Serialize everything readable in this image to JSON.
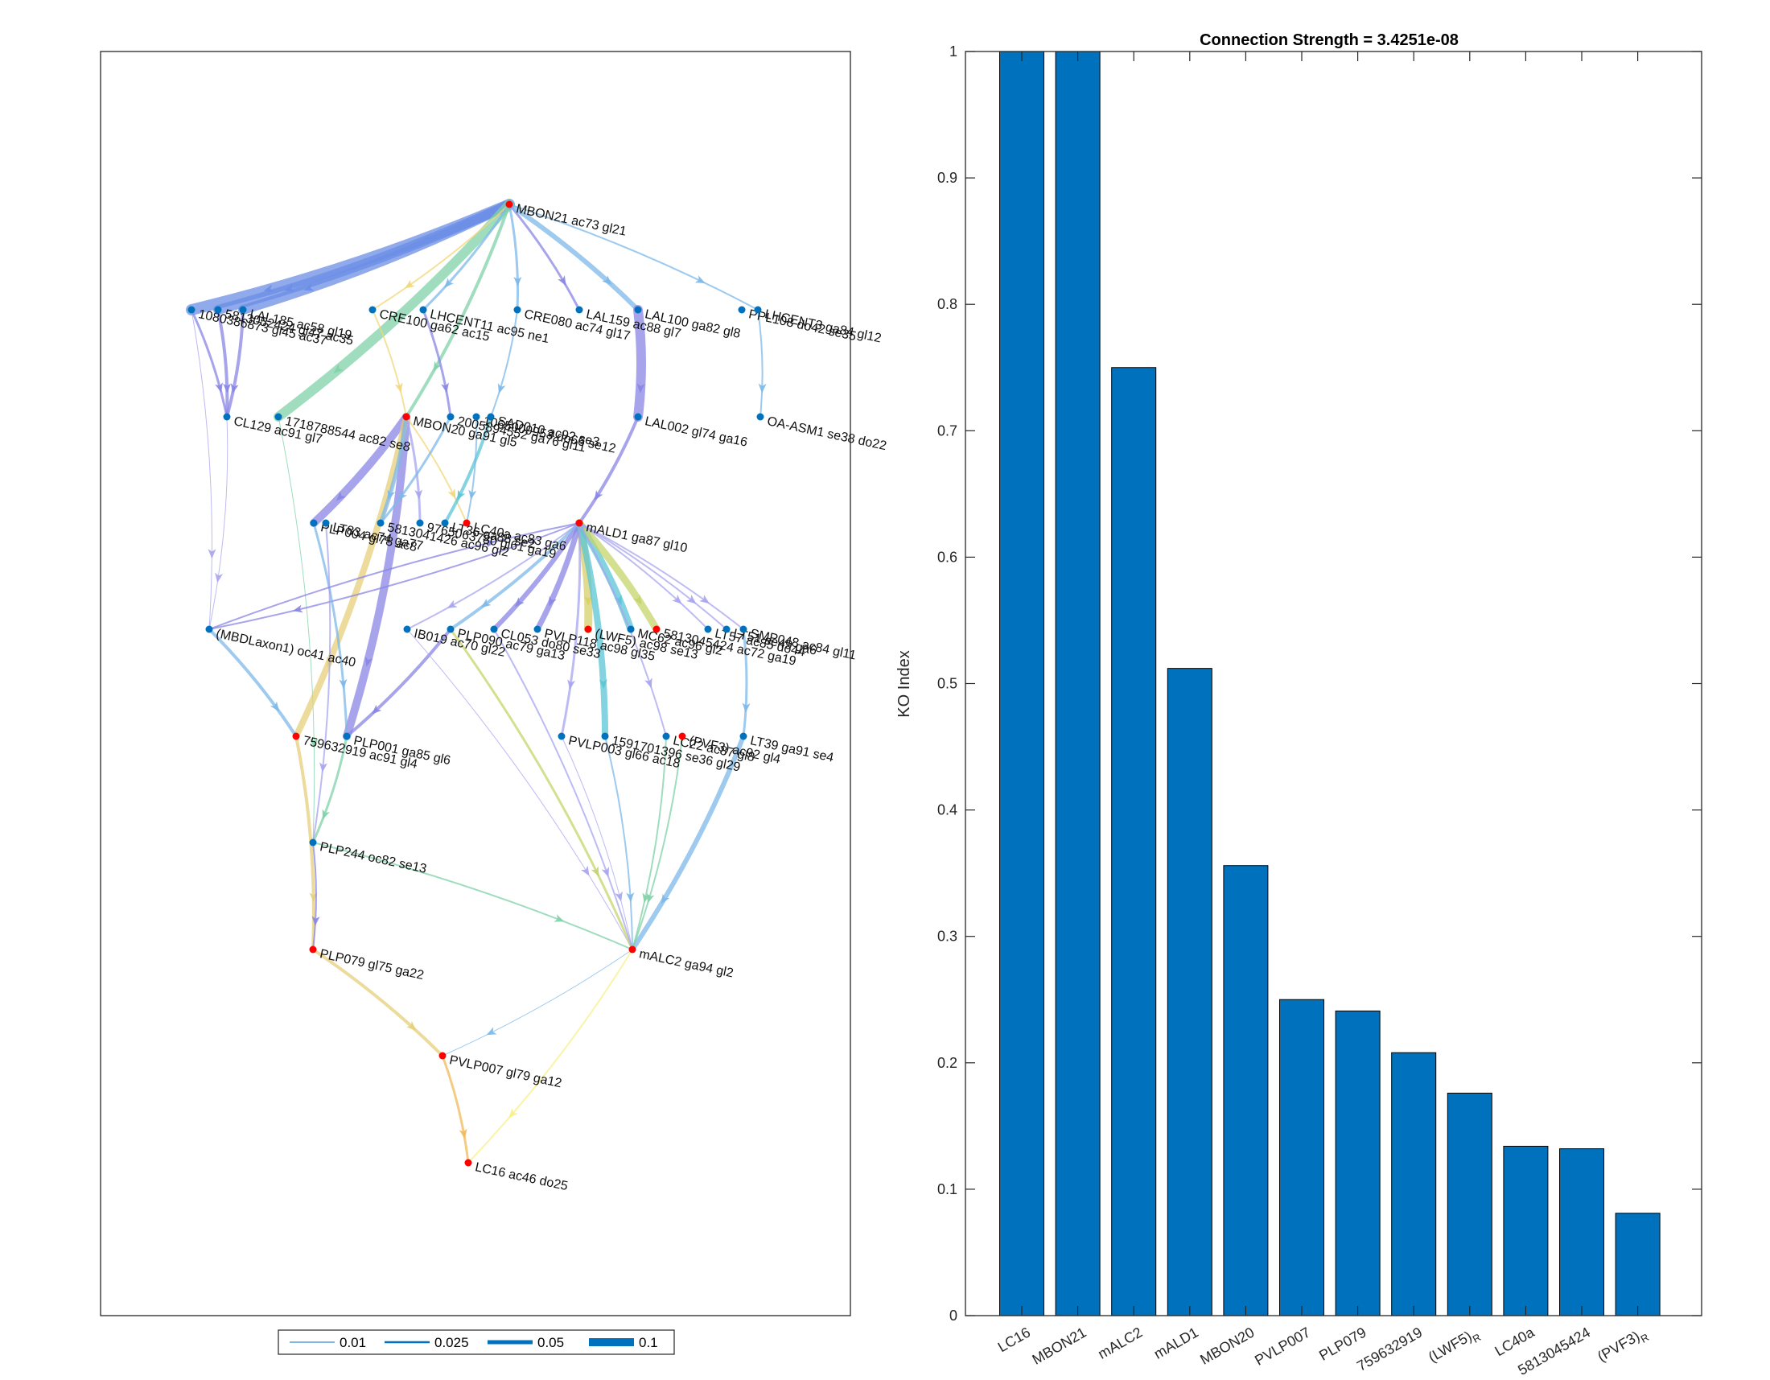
{
  "colors": {
    "bar": "#0072BD",
    "node_red": "#FF0000",
    "node_blue": "#0072BD",
    "legend_line": "#0072BD"
  },
  "graph": {
    "nodes": [
      {
        "id": "mbon21",
        "label": "MBON21 ac73 gl21",
        "color": "red"
      },
      {
        "id": "n1080",
        "label": "1080386873 gl45 ac37",
        "color": "blue"
      },
      {
        "id": "n5813b",
        "label": "5813052424 gl47 ac35",
        "color": "blue"
      },
      {
        "id": "lal185",
        "label": "LAL185 ac58 gl19",
        "color": "blue"
      },
      {
        "id": "cre100",
        "label": "CRE100 ga62 ac15",
        "color": "blue"
      },
      {
        "id": "lhcent11",
        "label": "LHCENT11 ac95 ne1",
        "color": "blue"
      },
      {
        "id": "cre080",
        "label": "CRE080 ac74 gl17",
        "color": "blue"
      },
      {
        "id": "lal159",
        "label": "LAL159 ac88 gl7",
        "color": "blue"
      },
      {
        "id": "lal100",
        "label": "LAL100 ga82 gl8",
        "color": "blue"
      },
      {
        "id": "ppl108",
        "label": "PPL108 do42 se35",
        "color": "blue"
      },
      {
        "id": "lhcent3",
        "label": "LHCENT3 ga84 gl12",
        "color": "blue"
      },
      {
        "id": "cl129",
        "label": "CL129 ac91 gl7",
        "color": "blue"
      },
      {
        "id": "n1718",
        "label": "1718788544 ac82 se8",
        "color": "blue"
      },
      {
        "id": "mbon20",
        "label": "MBON20 ga91 gl5",
        "color": "red"
      },
      {
        "id": "n2005",
        "label": "2005894552 ga76 gl11",
        "color": "blue"
      },
      {
        "id": "n1065",
        "label": "1065009953 do66 se12",
        "color": "blue"
      },
      {
        "id": "sad010",
        "label": "SAD010 ac92 se3",
        "color": "blue"
      },
      {
        "id": "lal002",
        "label": "LAL002 gl74 ga16",
        "color": "blue"
      },
      {
        "id": "oaasm1",
        "label": "OA-ASM1 se38 do22",
        "color": "blue"
      },
      {
        "id": "plp004",
        "label": "PLP004 gl78 ac8",
        "color": "blue"
      },
      {
        "id": "lt83",
        "label": "LT83 ac74 ga77",
        "color": "blue"
      },
      {
        "id": "n5813c",
        "label": "5813041426 ac96 gl2",
        "color": "blue"
      },
      {
        "id": "n9765",
        "label": "9765063780 gl61 ga19",
        "color": "blue"
      },
      {
        "id": "lt36",
        "label": "LT36 ga88 se2",
        "color": "blue"
      },
      {
        "id": "lc40a",
        "label": "LC40a ac83 ga6",
        "color": "red"
      },
      {
        "id": "mald1",
        "label": "mALD1 ga87 gl10",
        "color": "red"
      },
      {
        "id": "mbdl",
        "label": "(MBDLaxon1) oc41 ac40",
        "color": "blue"
      },
      {
        "id": "ib019",
        "label": "IB019 ac70 gl22",
        "color": "blue"
      },
      {
        "id": "plp090",
        "label": "PLP090 ac79 ga13",
        "color": "blue"
      },
      {
        "id": "cl053",
        "label": "CL053 do80 se33",
        "color": "blue"
      },
      {
        "id": "pvlpx",
        "label": "PVLP118 ac98 gl35",
        "color": "blue"
      },
      {
        "id": "lwf5",
        "label": "(LWF5) ac98 se13",
        "color": "red"
      },
      {
        "id": "mc62",
        "label": "MC62 ac96 gl2",
        "color": "blue"
      },
      {
        "id": "n5813045424",
        "label": "5813045424 ac72 ga19",
        "color": "red"
      },
      {
        "id": "lt57",
        "label": "LT57 ac85 do44",
        "color": "blue"
      },
      {
        "id": "lt51",
        "label": "LT51 se49 ga6",
        "color": "blue"
      },
      {
        "id": "smp048",
        "label": "SMP048 ac84 gl11",
        "color": "blue"
      },
      {
        "id": "n7596",
        "label": "759632919 ac91 gl4",
        "color": "red"
      },
      {
        "id": "plp001",
        "label": "PLP001 ga85 gl6",
        "color": "blue"
      },
      {
        "id": "pvlp003",
        "label": "PVLP003 gl66 ac18",
        "color": "blue"
      },
      {
        "id": "n1591",
        "label": "1591701396 se36 gl29",
        "color": "blue"
      },
      {
        "id": "lc22",
        "label": "LC22 ac87 gl8",
        "color": "blue"
      },
      {
        "id": "pvf3",
        "label": "(PVF3) ac92 gl4",
        "color": "red"
      },
      {
        "id": "lt39",
        "label": "LT39 ga91 se4",
        "color": "blue"
      },
      {
        "id": "plp244",
        "label": "PLP244 oc82 se13",
        "color": "blue"
      },
      {
        "id": "malc2",
        "label": "mALC2 ga94 gl2",
        "color": "red"
      },
      {
        "id": "plp079",
        "label": "PLP079 gl75 ga22",
        "color": "red"
      },
      {
        "id": "pvlp007",
        "label": "PVLP007 gl79 ga12",
        "color": "red"
      },
      {
        "id": "lc16",
        "label": "LC16 ac46 do25",
        "color": "red"
      }
    ],
    "legend": [
      {
        "label": "0.01",
        "weight": 0.01
      },
      {
        "label": "0.025",
        "weight": 0.025
      },
      {
        "label": "0.05",
        "weight": 0.05
      },
      {
        "label": "0.1",
        "weight": 0.1
      }
    ]
  },
  "chart_data": {
    "type": "bar",
    "title": "Connection Strength = 3.4251e-08",
    "xlabel": "",
    "ylabel": "KO Index",
    "ylim": [
      0,
      1
    ],
    "yticks": [
      "0",
      "0.1",
      "0.2",
      "0.3",
      "0.4",
      "0.5",
      "0.6",
      "0.7",
      "0.8",
      "0.9",
      "1"
    ],
    "categories": [
      {
        "label": "LC16",
        "sub": ""
      },
      {
        "label": "MBON21",
        "sub": ""
      },
      {
        "label": "mALC2",
        "sub": ""
      },
      {
        "label": "mALD1",
        "sub": ""
      },
      {
        "label": "MBON20",
        "sub": ""
      },
      {
        "label": "PVLP007",
        "sub": ""
      },
      {
        "label": "PLP079",
        "sub": ""
      },
      {
        "label": "759632919",
        "sub": ""
      },
      {
        "label": "(LWF5)",
        "sub": "R"
      },
      {
        "label": "LC40a",
        "sub": ""
      },
      {
        "label": "5813045424",
        "sub": ""
      },
      {
        "label": "(PVF3)",
        "sub": "R"
      }
    ],
    "values": [
      1.0,
      1.0,
      0.75,
      0.512,
      0.356,
      0.25,
      0.241,
      0.208,
      0.176,
      0.134,
      0.132,
      0.081
    ],
    "grid": false
  }
}
